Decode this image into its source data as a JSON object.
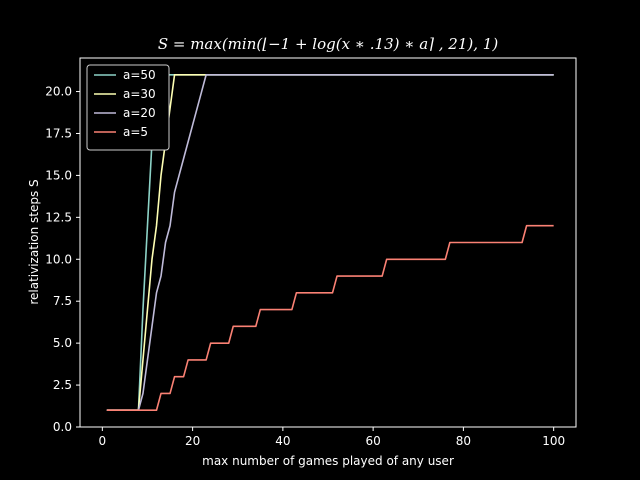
{
  "chart_data": {
    "type": "line",
    "title": "S = max(min(⌊−1 + log(x ∗ .13) ∗ a⌉ , 21), 1)",
    "xlabel": "max number of games played of any user",
    "ylabel": "relativization steps S",
    "xlim": [
      -4.95,
      104.95
    ],
    "ylim": [
      0,
      22
    ],
    "xticks": [
      0,
      20,
      40,
      60,
      80,
      100
    ],
    "yticks": [
      0.0,
      2.5,
      5.0,
      7.5,
      10.0,
      12.5,
      15.0,
      17.5,
      20.0
    ],
    "grid": false,
    "legend_position": "upper-left",
    "style": {
      "background": "#000000",
      "foreground": "#ffffff"
    },
    "series": [
      {
        "name": "a=50",
        "color": "#8dd3c7",
        "a": 50
      },
      {
        "name": "a=30",
        "color": "#feffb3",
        "a": 30
      },
      {
        "name": "a=20",
        "color": "#bfbbd9",
        "a": 20
      },
      {
        "name": "a=5",
        "color": "#fa8174",
        "a": 5
      }
    ],
    "x": [
      1,
      100
    ],
    "formula": "max(min(round(-1 + ln(x*0.13)*a), 21), 1)"
  }
}
